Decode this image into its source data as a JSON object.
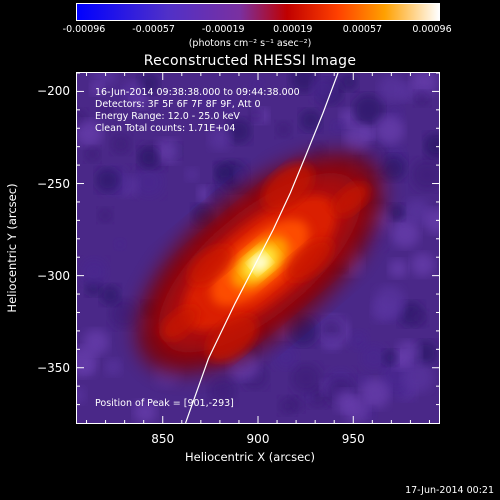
{
  "colorbar": {
    "ticks": [
      "-0.00096",
      "-0.00057",
      "-0.00019",
      "0.00019",
      "0.00057",
      "0.00096"
    ],
    "units_label": "(photons cm⁻² s⁻¹ asec⁻²)"
  },
  "image_info": {
    "time_range": "16-Jun-2014 09:38:38.000 to 09:44:38.000",
    "detectors": "Detectors: 3F 5F 6F 7F 8F 9F, Att 0",
    "energy_range": "Energy Range: 12.0 - 25.0 keV",
    "clean_counts": "Clean    Total counts: 1.71E+04",
    "peak_position": "Position of Peak = [901,-293]"
  },
  "footer": {
    "timestamp": "17-Jun-2014 00:21"
  },
  "colors": {
    "low": "#0000ff",
    "mid_low": "#6040c0",
    "high": "#ffff00",
    "limb_line": "#ffffff"
  },
  "chart_data": {
    "type": "heatmap",
    "title": "Reconstructed RHESSI Image",
    "xlabel": "Heliocentric X (arcsec)",
    "ylabel": "Heliocentric Y (arcsec)",
    "xlim": [
      805,
      995
    ],
    "ylim": [
      -380,
      -190
    ],
    "xticks": [
      850,
      900,
      950
    ],
    "yticks": [
      -200,
      -250,
      -300,
      -350
    ],
    "xtick_labels": [
      "850",
      "900",
      "950"
    ],
    "ytick_labels": [
      "−200",
      "−250",
      "−300",
      "−350"
    ],
    "peak": [
      901,
      -293
    ],
    "value_range": [
      -0.00096,
      0.00096
    ],
    "source_extent_arcsec": [
      70,
      30
    ],
    "source_orientation_deg": 40,
    "limb_curve": [
      [
        862,
        -380
      ],
      [
        874,
        -345
      ],
      [
        888,
        -315
      ],
      [
        898,
        -295
      ],
      [
        908,
        -275
      ],
      [
        917,
        -255
      ],
      [
        925,
        -235
      ],
      [
        934,
        -212
      ],
      [
        942,
        -190
      ]
    ]
  }
}
